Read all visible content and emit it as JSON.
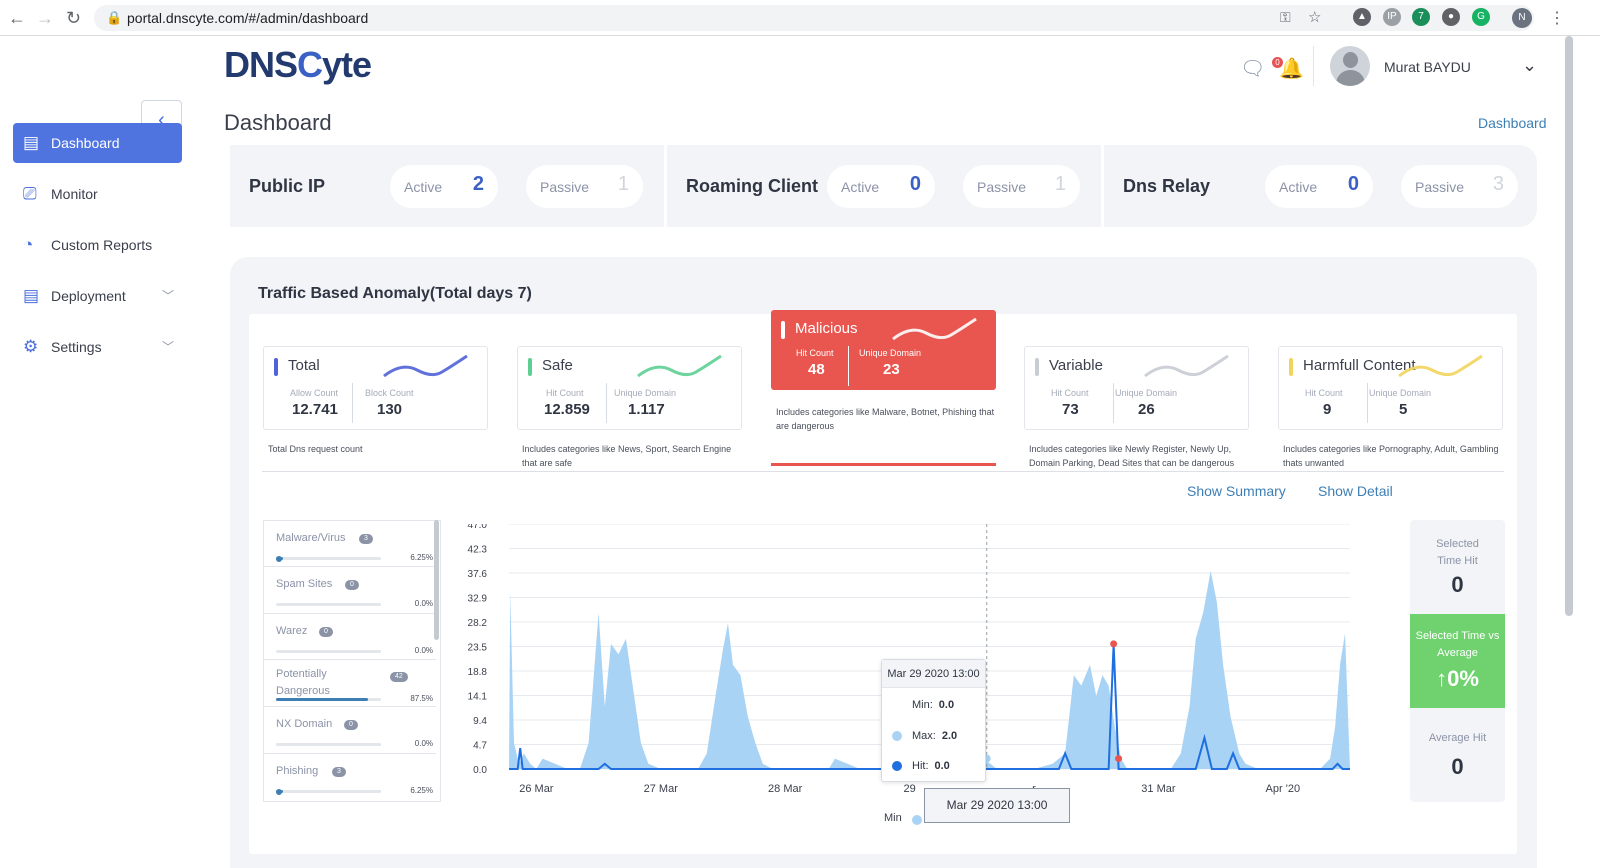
{
  "browser": {
    "url": "portal.dnscyte.com/#/admin/dashboard",
    "profile_initial": "N",
    "ext_badge": "7"
  },
  "logo": {
    "part1": "DNS",
    "part2": "C",
    "part3": "yte"
  },
  "header": {
    "title": "Dashboard",
    "breadcrumb": "Dashboard",
    "user": "Murat BAYDU",
    "notif_count": "0"
  },
  "sidebar": {
    "items": [
      {
        "label": "Dashboard",
        "icon": "dashboard-icon"
      },
      {
        "label": "Monitor",
        "icon": "monitor-icon"
      },
      {
        "label": "Custom Reports",
        "icon": "pie-chart-icon"
      },
      {
        "label": "Deployment",
        "icon": "deployment-icon"
      },
      {
        "label": "Settings",
        "icon": "gear-icon"
      }
    ]
  },
  "stats": [
    {
      "title": "Public IP",
      "active_label": "Active",
      "active": "2",
      "passive_label": "Passive",
      "passive": "1"
    },
    {
      "title": "Roaming Client",
      "active_label": "Active",
      "active": "0",
      "passive_label": "Passive",
      "passive": "1"
    },
    {
      "title": "Dns Relay",
      "active_label": "Active",
      "active": "0",
      "passive_label": "Passive",
      "passive": "3"
    }
  ],
  "anomaly": {
    "title": "Traffic Based Anomaly(Total days 7)",
    "cards": [
      {
        "name": "Total",
        "l1": "Allow Count",
        "v1": "12.741",
        "l2": "Block Count",
        "v2": "130",
        "desc": "Total Dns request count",
        "color": "#4f62d8"
      },
      {
        "name": "Safe",
        "l1": "Hit Count",
        "v1": "12.859",
        "l2": "Unique Domain",
        "v2": "1.117",
        "desc": "Includes categories like News, Sport, Search Engine that are safe",
        "color": "#5ccf91"
      },
      {
        "name": "Malicious",
        "l1": "Hit Count",
        "v1": "48",
        "l2": "Unique Domain",
        "v2": "23",
        "desc": "Includes categories like Malware, Botnet, Phishing that are dangerous",
        "color": "#ffffff"
      },
      {
        "name": "Variable",
        "l1": "Hit Count",
        "v1": "73",
        "l2": "Unique Domain",
        "v2": "26",
        "desc": "Includes categories like Newly Register, Newly Up, Domain Parking, Dead Sites that can be dangerous",
        "color": "#c8ccd3"
      },
      {
        "name": "Harmfull Content",
        "l1": "Hit Count",
        "v1": "9",
        "l2": "Unique Domain",
        "v2": "5",
        "desc": "Includes categories like Pornography, Adult, Gambling thats unwanted",
        "color": "#f2d45c"
      }
    ],
    "show_summary": "Show Summary",
    "show_detail": "Show Detail"
  },
  "categories": [
    {
      "name": "Malware/Virus",
      "count": "3",
      "pct": "6.25%",
      "fill": 0.0625
    },
    {
      "name": "Spam Sites",
      "count": "0",
      "pct": "0.0%",
      "fill": 0
    },
    {
      "name": "Warez",
      "count": "0",
      "pct": "0.0%",
      "fill": 0
    },
    {
      "name": "Potentially Dangerous",
      "count": "42",
      "pct": "87.5%",
      "fill": 0.875
    },
    {
      "name": "NX Domain",
      "count": "0",
      "pct": "0.0%",
      "fill": 0
    },
    {
      "name": "Phishing",
      "count": "3",
      "pct": "6.25%",
      "fill": 0.0625
    }
  ],
  "side_stats": {
    "selected_label": "Selected Time Hit",
    "selected": "0",
    "vs_label": "Selected Time vs Average",
    "vs": "0%",
    "avg_label": "Average Hit",
    "avg": "0"
  },
  "tooltip": {
    "header": "Mar 29 2020 13:00",
    "min_label": "Min:",
    "min": "0.0",
    "max_label": "Max:",
    "max": "2.0",
    "hit_label": "Hit:",
    "hit": "0.0"
  },
  "xaxis_tooltip": "Mar 29 2020 13:00",
  "legend_min": "Min",
  "chart_data": {
    "type": "area",
    "y_ticks": [
      "47.0",
      "42.3",
      "37.6",
      "32.9",
      "28.2",
      "23.5",
      "18.8",
      "14.1",
      "9.4",
      "4.7",
      "0.0"
    ],
    "ylim": [
      0,
      47
    ],
    "x_ticks": [
      {
        "label": "26 Mar",
        "t": 1.0
      },
      {
        "label": "27 Mar",
        "t": 2.0
      },
      {
        "label": "28 Mar",
        "t": 3.0
      },
      {
        "label": "29",
        "t": 4.0
      },
      {
        "label": "r",
        "t": 5.0
      },
      {
        "label": "31 Mar",
        "t": 6.0
      },
      {
        "label": "Apr '20",
        "t": 7.0
      }
    ],
    "xlim": [
      0.78,
      7.54
    ],
    "series": [
      {
        "name": "Max",
        "color": "#a9d3f5",
        "values": [
          [
            0.78,
            0
          ],
          [
            0.79,
            34
          ],
          [
            0.82,
            5
          ],
          [
            0.86,
            1
          ],
          [
            0.9,
            3
          ],
          [
            0.95,
            1
          ],
          [
            1.0,
            0
          ],
          [
            1.05,
            2
          ],
          [
            1.15,
            1
          ],
          [
            1.25,
            0
          ],
          [
            1.35,
            0
          ],
          [
            1.42,
            5
          ],
          [
            1.5,
            30
          ],
          [
            1.55,
            12
          ],
          [
            1.6,
            24
          ],
          [
            1.66,
            22
          ],
          [
            1.72,
            25
          ],
          [
            1.78,
            15
          ],
          [
            1.84,
            5
          ],
          [
            1.9,
            1
          ],
          [
            2.0,
            0
          ],
          [
            2.2,
            0
          ],
          [
            2.3,
            0
          ],
          [
            2.37,
            3
          ],
          [
            2.44,
            14
          ],
          [
            2.5,
            23
          ],
          [
            2.54,
            28
          ],
          [
            2.58,
            20
          ],
          [
            2.64,
            18
          ],
          [
            2.7,
            10
          ],
          [
            2.76,
            5
          ],
          [
            2.82,
            1
          ],
          [
            2.9,
            0
          ],
          [
            3.2,
            0
          ],
          [
            3.35,
            0
          ],
          [
            3.4,
            2
          ],
          [
            3.5,
            1
          ],
          [
            3.6,
            0
          ],
          [
            4.0,
            0
          ],
          [
            4.08,
            1
          ],
          [
            4.12,
            0
          ],
          [
            4.2,
            3
          ],
          [
            4.27,
            6
          ],
          [
            4.32,
            3
          ],
          [
            4.38,
            6
          ],
          [
            4.45,
            3
          ],
          [
            4.52,
            4
          ],
          [
            4.58,
            2
          ],
          [
            4.65,
            1
          ],
          [
            4.7,
            0
          ],
          [
            5.0,
            0
          ],
          [
            5.15,
            1
          ],
          [
            5.25,
            3
          ],
          [
            5.32,
            18
          ],
          [
            5.38,
            16
          ],
          [
            5.45,
            20
          ],
          [
            5.5,
            14
          ],
          [
            5.55,
            18
          ],
          [
            5.6,
            16
          ],
          [
            5.65,
            8
          ],
          [
            5.7,
            2
          ],
          [
            5.75,
            0
          ],
          [
            6.1,
            0
          ],
          [
            6.18,
            3
          ],
          [
            6.25,
            12
          ],
          [
            6.3,
            25
          ],
          [
            6.36,
            30
          ],
          [
            6.42,
            38
          ],
          [
            6.47,
            32
          ],
          [
            6.52,
            20
          ],
          [
            6.58,
            10
          ],
          [
            6.65,
            3
          ],
          [
            6.7,
            1
          ],
          [
            6.8,
            0
          ],
          [
            7.3,
            0
          ],
          [
            7.38,
            2
          ],
          [
            7.42,
            8
          ],
          [
            7.46,
            20
          ],
          [
            7.5,
            26
          ],
          [
            7.54,
            0
          ]
        ]
      },
      {
        "name": "Hit",
        "color": "#1f6fe0",
        "values": [
          [
            0.78,
            0
          ],
          [
            0.85,
            0
          ],
          [
            0.87,
            4
          ],
          [
            0.89,
            0
          ],
          [
            1.5,
            0
          ],
          [
            1.55,
            1
          ],
          [
            1.6,
            0
          ],
          [
            4.0,
            0
          ],
          [
            4.3,
            0
          ],
          [
            4.33,
            1
          ],
          [
            4.36,
            0
          ],
          [
            5.2,
            0
          ],
          [
            5.25,
            3
          ],
          [
            5.3,
            0
          ],
          [
            5.6,
            0
          ],
          [
            5.64,
            24
          ],
          [
            5.68,
            0
          ],
          [
            6.3,
            0
          ],
          [
            6.37,
            6
          ],
          [
            6.43,
            0
          ],
          [
            6.55,
            0
          ],
          [
            6.6,
            3
          ],
          [
            6.65,
            0
          ],
          [
            7.4,
            0
          ],
          [
            7.44,
            1
          ],
          [
            7.48,
            0
          ],
          [
            7.54,
            0
          ]
        ]
      }
    ],
    "markers": [
      {
        "t": 5.64,
        "v": 24.0,
        "color": "#e8564f"
      },
      {
        "t": 5.68,
        "v": 2.0,
        "color": "#e8564f"
      }
    ],
    "crosshair_t": 4.62
  }
}
